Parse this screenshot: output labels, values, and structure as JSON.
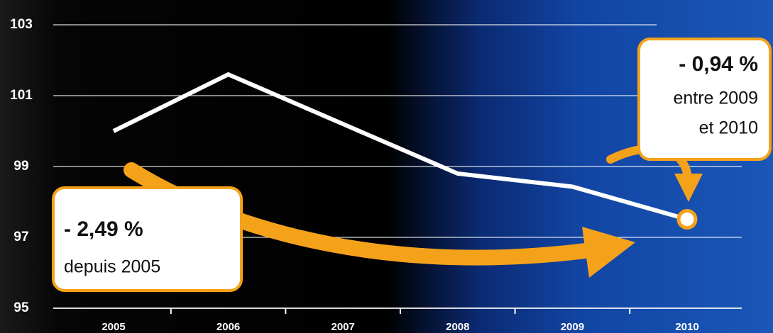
{
  "chart_data": {
    "type": "line",
    "categories": [
      "2005",
      "2006",
      "2007",
      "2008",
      "2009",
      "2010"
    ],
    "values": [
      100,
      101.6,
      100.2,
      98.8,
      98.43,
      97.51
    ],
    "color": "#ffffff",
    "ylim": [
      95,
      103
    ],
    "yticks": [
      95,
      97,
      99,
      101,
      103
    ],
    "grid": true,
    "annotations": [
      {
        "title": "- 2,49 %",
        "text": [
          "depuis 2005"
        ]
      },
      {
        "title": "- 0,94 %",
        "text": [
          "entre 2009",
          "et 2010"
        ]
      }
    ]
  }
}
